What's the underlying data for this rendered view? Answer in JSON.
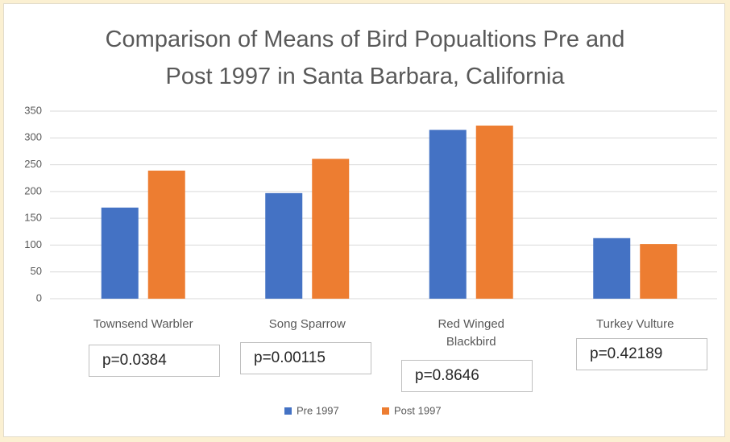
{
  "chart_data": {
    "type": "bar",
    "title": "Comparison of Means of Bird Popualtions Pre and Post 1997 in Santa Barbara, California",
    "categories": [
      "Townsend Warbler",
      "Song Sparrow",
      "Red Winged Blackbird",
      "Turkey Vulture"
    ],
    "series": [
      {
        "name": "Pre 1997",
        "color": "#4472c4",
        "values": [
          170,
          197,
          315,
          113
        ]
      },
      {
        "name": "Post 1997",
        "color": "#ed7d31",
        "values": [
          239,
          261,
          323,
          102
        ]
      }
    ],
    "annotations": [
      "p=0.0384",
      "p=0.00115",
      "p=0.8646",
      "p=0.42189"
    ],
    "ylim": [
      0,
      350
    ],
    "yticks": [
      0,
      50,
      100,
      150,
      200,
      250,
      300,
      350
    ],
    "grid": true,
    "legend": "bottom"
  }
}
